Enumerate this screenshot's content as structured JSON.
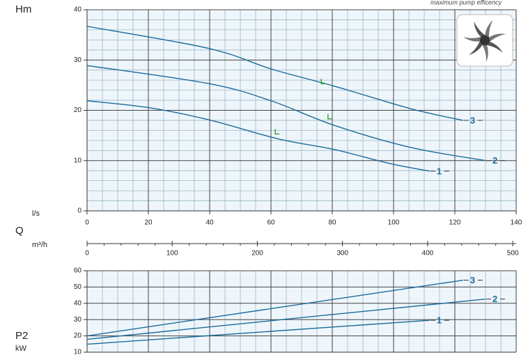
{
  "chart_data": [
    {
      "type": "line",
      "ylabel": "Hm",
      "xlabel": "l/s",
      "xsymbol": "Q",
      "x2label": "m³/h",
      "annotation": "maximum pump efficency",
      "xlim": [
        0,
        140
      ],
      "xticks": [
        0,
        20,
        40,
        60,
        80,
        100,
        120,
        140
      ],
      "x2lim": [
        0,
        504
      ],
      "x2ticks": [
        0,
        100,
        200,
        300,
        400,
        500
      ],
      "ylim": [
        0,
        40
      ],
      "yticks": [
        0,
        10,
        20,
        30,
        40
      ],
      "grid": true,
      "series": [
        {
          "name": "1",
          "color": "#1b6a9a",
          "x": [
            0,
            20.5,
            39.8,
            62.5,
            80.7,
            98.9,
            111.8
          ],
          "values": [
            21.9,
            20.5,
            18.1,
            14.3,
            12.2,
            9.4,
            7.9
          ]
        },
        {
          "name": "2",
          "color": "#1b6a9a",
          "x": [
            0,
            39.8,
            60,
            80.7,
            105.7,
            130
          ],
          "values": [
            28.9,
            25.3,
            21.9,
            17,
            12.6,
            10
          ]
        },
        {
          "name": "3",
          "color": "#1b6a9a",
          "x": [
            0,
            39.8,
            60.2,
            80.7,
            105.7,
            122.7
          ],
          "values": [
            36.7,
            32.3,
            28.2,
            24.8,
            20.3,
            18
          ]
        }
      ],
      "efficiency_points": {
        "color": "#3aa53a",
        "x": [
          61.4,
          76.4,
          78.6
        ],
        "values": [
          15.3,
          25.3,
          18.3
        ]
      }
    },
    {
      "type": "line",
      "ylabel": "P2",
      "yunit": "kW",
      "xlim": [
        0,
        140
      ],
      "xticks": [
        0,
        20,
        40,
        60,
        80,
        100,
        120,
        140
      ],
      "ylim": [
        10,
        60
      ],
      "yticks": [
        10,
        20,
        30,
        40,
        50,
        60
      ],
      "grid": true,
      "series": [
        {
          "name": "1",
          "color": "#1b6a9a",
          "x": [
            0,
            111.8
          ],
          "values": [
            14.9,
            29.6
          ]
        },
        {
          "name": "2",
          "color": "#1b6a9a",
          "x": [
            0,
            130
          ],
          "values": [
            17.9,
            42.6
          ]
        },
        {
          "name": "3",
          "color": "#1b6a9a",
          "x": [
            0,
            122.7
          ],
          "values": [
            20,
            54.2
          ]
        }
      ]
    }
  ]
}
